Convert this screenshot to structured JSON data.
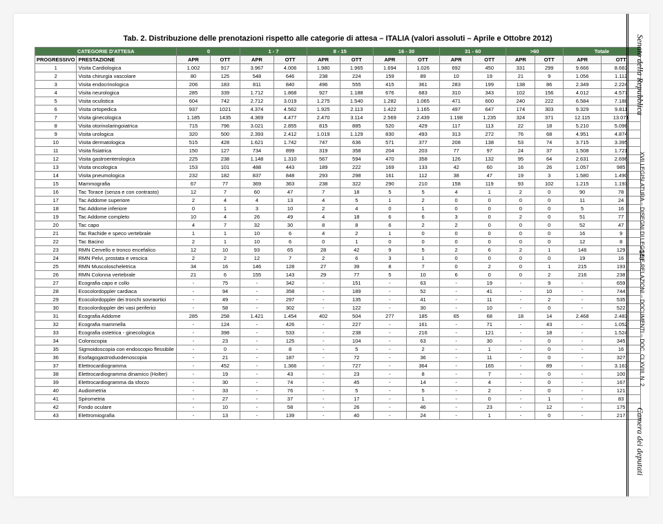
{
  "title": "Tab. 2. Distribuzione delle prenotazioni rispetto alle categorie di attesa – ITALIA (valori assoluti – Aprile e Ottobre 2012)",
  "sidebar": {
    "top": "Senato della Repubblica",
    "mid": "XVII LEGISLATURA – DISEGNI DI LEGGE E RELAZIONI – DOCUMENTI – DOC. CLXVIII, N. 2",
    "bottom": "Camera dei deputati",
    "page": "- 148 -"
  },
  "header": {
    "catLabel": "CATEGORIE D'ATTESA",
    "groups": [
      "0",
      "1 - 7",
      "8 - 15",
      "16 - 30",
      "31 - 60",
      ">60",
      "Totale"
    ],
    "prog": "PROGRESSIVO",
    "prest": "PRESTAZIONE",
    "apr": "APR",
    "ott": "OTT"
  },
  "rows": [
    {
      "n": "1",
      "name": "Visita Cardiologica",
      "v": [
        "1.002",
        "917",
        "3.967",
        "4.006",
        "1.980",
        "1.965",
        "1.694",
        "1.026",
        "692",
        "450",
        "331",
        "299",
        "9.666",
        "8.663"
      ]
    },
    {
      "n": "2",
      "name": "Visita chirurgia vascolare",
      "v": [
        "80",
        "125",
        "548",
        "646",
        "238",
        "224",
        "159",
        "89",
        "10",
        "19",
        "21",
        "9",
        "1.056",
        "1.112"
      ]
    },
    {
      "n": "3",
      "name": "Visita endocrinologica",
      "v": [
        "206",
        "183",
        "811",
        "840",
        "496",
        "555",
        "415",
        "361",
        "283",
        "199",
        "138",
        "86",
        "2.349",
        "2.224"
      ]
    },
    {
      "n": "4",
      "name": "Visita neurologica",
      "v": [
        "285",
        "339",
        "1.712",
        "1.868",
        "927",
        "1.188",
        "676",
        "683",
        "310",
        "343",
        "102",
        "156",
        "4.012",
        "4.577"
      ]
    },
    {
      "n": "5",
      "name": "Visita oculistica",
      "v": [
        "604",
        "742",
        "2.712",
        "3.019",
        "1.275",
        "1.540",
        "1.282",
        "1.065",
        "471",
        "600",
        "240",
        "222",
        "6.584",
        "7.188"
      ]
    },
    {
      "n": "6",
      "name": "Visita ortopedica",
      "v": [
        "937",
        "1021",
        "4.374",
        "4.562",
        "1.925",
        "2.113",
        "1.422",
        "1.165",
        "497",
        "647",
        "174",
        "303",
        "9.329",
        "9.811"
      ]
    },
    {
      "n": "7",
      "name": "Visita ginecologica",
      "v": [
        "1.185",
        "1435",
        "4.369",
        "4.477",
        "2.470",
        "3.114",
        "2.569",
        "2.439",
        "1.198",
        "1.235",
        "324",
        "371",
        "12.115",
        "13.071"
      ]
    },
    {
      "n": "8",
      "name": "Visita otorinolaringoiatrica",
      "v": [
        "715",
        "796",
        "3.021",
        "2.855",
        "815",
        "885",
        "520",
        "429",
        "117",
        "113",
        "22",
        "18",
        "5.210",
        "5.096"
      ]
    },
    {
      "n": "9",
      "name": "Visita urologica",
      "v": [
        "320",
        "500",
        "2.393",
        "2.412",
        "1.019",
        "1.129",
        "830",
        "493",
        "313",
        "272",
        "76",
        "68",
        "4.951",
        "4.874"
      ]
    },
    {
      "n": "10",
      "name": "Visita dermatologica",
      "v": [
        "515",
        "428",
        "1.621",
        "1.742",
        "747",
        "636",
        "571",
        "377",
        "208",
        "138",
        "53",
        "74",
        "3.715",
        "3.395"
      ]
    },
    {
      "n": "11",
      "name": "Visita fisiatrica",
      "v": [
        "150",
        "127",
        "734",
        "899",
        "319",
        "358",
        "204",
        "203",
        "77",
        "97",
        "24",
        "37",
        "1.508",
        "1.721"
      ]
    },
    {
      "n": "12",
      "name": "Visita gastroenterologica",
      "v": [
        "225",
        "238",
        "1.148",
        "1.310",
        "567",
        "594",
        "470",
        "358",
        "126",
        "132",
        "95",
        "64",
        "2.631",
        "2.696"
      ]
    },
    {
      "n": "13",
      "name": "Visita oncologica",
      "v": [
        "153",
        "101",
        "488",
        "443",
        "189",
        "222",
        "169",
        "133",
        "42",
        "60",
        "16",
        "26",
        "1.057",
        "985"
      ]
    },
    {
      "n": "14",
      "name": "Visita pneumologica",
      "v": [
        "232",
        "182",
        "837",
        "848",
        "293",
        "298",
        "161",
        "112",
        "38",
        "47",
        "19",
        "3",
        "1.580",
        "1.490"
      ]
    },
    {
      "n": "15",
      "name": "Mammografia",
      "v": [
        "67",
        "77",
        "369",
        "363",
        "238",
        "322",
        "290",
        "210",
        "158",
        "119",
        "93",
        "102",
        "1.215",
        "1.193"
      ]
    },
    {
      "n": "16",
      "name": "Tac Torace (senza e con contrasto)",
      "v": [
        "12",
        "7",
        "60",
        "47",
        "7",
        "18",
        "5",
        "5",
        "4",
        "1",
        "2",
        "0",
        "90",
        "78"
      ]
    },
    {
      "n": "17",
      "name": "Tac Addome superiore",
      "v": [
        "2",
        "4",
        "4",
        "13",
        "4",
        "5",
        "1",
        "2",
        "0",
        "0",
        "0",
        "0",
        "11",
        "24"
      ]
    },
    {
      "n": "18",
      "name": "Tac Addome inferiore",
      "v": [
        "0",
        "1",
        "3",
        "10",
        "2",
        "4",
        "0",
        "1",
        "0",
        "0",
        "0",
        "0",
        "5",
        "16"
      ]
    },
    {
      "n": "19",
      "name": "Tac Addome completo",
      "v": [
        "10",
        "4",
        "26",
        "49",
        "4",
        "18",
        "6",
        "6",
        "3",
        "0",
        "2",
        "0",
        "51",
        "77"
      ]
    },
    {
      "n": "20",
      "name": "Tac capo",
      "v": [
        "4",
        "7",
        "32",
        "30",
        "8",
        "8",
        "6",
        "2",
        "2",
        "0",
        "0",
        "0",
        "52",
        "47"
      ]
    },
    {
      "n": "21",
      "name": "Tac Rachide e speco vertebrale",
      "v": [
        "1",
        "1",
        "10",
        "6",
        "4",
        "2",
        "1",
        "0",
        "0",
        "0",
        "0",
        "0",
        "16",
        "9"
      ]
    },
    {
      "n": "22",
      "name": "Tac Bacino",
      "v": [
        "2",
        "1",
        "10",
        "6",
        "0",
        "1",
        "0",
        "0",
        "0",
        "0",
        "0",
        "0",
        "12",
        "8"
      ]
    },
    {
      "n": "23",
      "name": "RMN Cervello e tronco encefalico",
      "v": [
        "12",
        "10",
        "93",
        "65",
        "28",
        "42",
        "9",
        "5",
        "2",
        "6",
        "2",
        "1",
        "146",
        "129"
      ]
    },
    {
      "n": "24",
      "name": "RMN Pelvi, prostata e vescica",
      "v": [
        "2",
        "2",
        "12",
        "7",
        "2",
        "6",
        "3",
        "1",
        "0",
        "0",
        "0",
        "0",
        "19",
        "16"
      ]
    },
    {
      "n": "25",
      "name": "RMN Muscoloscheletrica",
      "v": [
        "34",
        "16",
        "146",
        "128",
        "27",
        "39",
        "8",
        "7",
        "0",
        "2",
        "0",
        "1",
        "215",
        "193"
      ]
    },
    {
      "n": "26",
      "name": "RMN Colonna vertebrale",
      "v": [
        "21",
        "6",
        "155",
        "143",
        "29",
        "77",
        "5",
        "10",
        "6",
        "0",
        "0",
        "2",
        "216",
        "238"
      ]
    },
    {
      "n": "27",
      "name": "Ecografia capo e collo",
      "v": [
        "-",
        "75",
        "-",
        "342",
        "-",
        "151",
        "-",
        "63",
        "-",
        "19",
        "-",
        "9",
        "-",
        "659"
      ]
    },
    {
      "n": "28",
      "name": "Ecocolordoppler cardiaca",
      "v": [
        "-",
        "94",
        "-",
        "358",
        "-",
        "189",
        "-",
        "52",
        "-",
        "41",
        "-",
        "10",
        "-",
        "744"
      ]
    },
    {
      "n": "29",
      "name": "Ecocolordoppler dei tronchi sovraortici",
      "v": [
        "-",
        "49",
        "-",
        "297",
        "-",
        "135",
        "-",
        "41",
        "-",
        "11",
        "-",
        "2",
        "-",
        "535"
      ]
    },
    {
      "n": "30",
      "name": "Ecocolordoppler dei vasi periferici",
      "v": [
        "-",
        "58",
        "-",
        "302",
        "-",
        "122",
        "-",
        "30",
        "-",
        "10",
        "-",
        "0",
        "-",
        "522"
      ]
    },
    {
      "n": "31",
      "name": "Ecografia Addome",
      "v": [
        "285",
        "258",
        "1.421",
        "1.454",
        "402",
        "504",
        "277",
        "185",
        "65",
        "68",
        "18",
        "14",
        "2.468",
        "2.483"
      ]
    },
    {
      "n": "32",
      "name": "Ecografia mammella",
      "v": [
        "-",
        "124",
        "-",
        "426",
        "-",
        "227",
        "-",
        "161",
        "-",
        "71",
        "-",
        "43",
        "-",
        "1.052"
      ]
    },
    {
      "n": "33",
      "name": "Ecografia ostetrica - ginecologica",
      "v": [
        "-",
        "398",
        "-",
        "533",
        "-",
        "238",
        "-",
        "216",
        "-",
        "121",
        "-",
        "18",
        "-",
        "1.524"
      ]
    },
    {
      "n": "34",
      "name": "Colonscopia",
      "v": [
        "-",
        "23",
        "-",
        "125",
        "-",
        "104",
        "-",
        "63",
        "-",
        "30",
        "-",
        "0",
        "-",
        "345"
      ]
    },
    {
      "n": "35",
      "name": "Sigmoidoscopia con endoscopio flessibile",
      "v": [
        "-",
        "0",
        "-",
        "8",
        "-",
        "5",
        "-",
        "2",
        "-",
        "1",
        "-",
        "0",
        "-",
        "16"
      ]
    },
    {
      "n": "36",
      "name": "Esofagogastroduodenoscopia",
      "v": [
        "-",
        "21",
        "-",
        "187",
        "-",
        "72",
        "-",
        "36",
        "-",
        "11",
        "-",
        "0",
        "-",
        "327"
      ]
    },
    {
      "n": "37",
      "name": "Elettrocardiogramma",
      "v": [
        "-",
        "452",
        "-",
        "1.366",
        "-",
        "727",
        "-",
        "364",
        "-",
        "165",
        "-",
        "89",
        "-",
        "3.163"
      ]
    },
    {
      "n": "38",
      "name": "Elettrocardiogramma dinamico (Holter)",
      "v": [
        "-",
        "19",
        "-",
        "43",
        "-",
        "23",
        "-",
        "8",
        "-",
        "7",
        "-",
        "0",
        "-",
        "100"
      ]
    },
    {
      "n": "39",
      "name": "Elettrocardiogramma da sforzo",
      "v": [
        "-",
        "30",
        "-",
        "74",
        "-",
        "45",
        "-",
        "14",
        "-",
        "4",
        "-",
        "0",
        "-",
        "167"
      ]
    },
    {
      "n": "40",
      "name": "Audiometria",
      "v": [
        "-",
        "33",
        "-",
        "76",
        "-",
        "5",
        "-",
        "5",
        "-",
        "2",
        "-",
        "0",
        "-",
        "121"
      ]
    },
    {
      "n": "41",
      "name": "Spirometria",
      "v": [
        "-",
        "27",
        "-",
        "37",
        "-",
        "17",
        "-",
        "1",
        "-",
        "0",
        "-",
        "1",
        "-",
        "83"
      ]
    },
    {
      "n": "42",
      "name": "Fondo oculare",
      "v": [
        "-",
        "10",
        "-",
        "58",
        "-",
        "26",
        "-",
        "46",
        "-",
        "23",
        "-",
        "12",
        "-",
        "175"
      ]
    },
    {
      "n": "43",
      "name": "Elettromiografia",
      "v": [
        "-",
        "13",
        "-",
        "139",
        "-",
        "40",
        "-",
        "24",
        "-",
        "1",
        "-",
        "0",
        "-",
        "217"
      ]
    }
  ]
}
